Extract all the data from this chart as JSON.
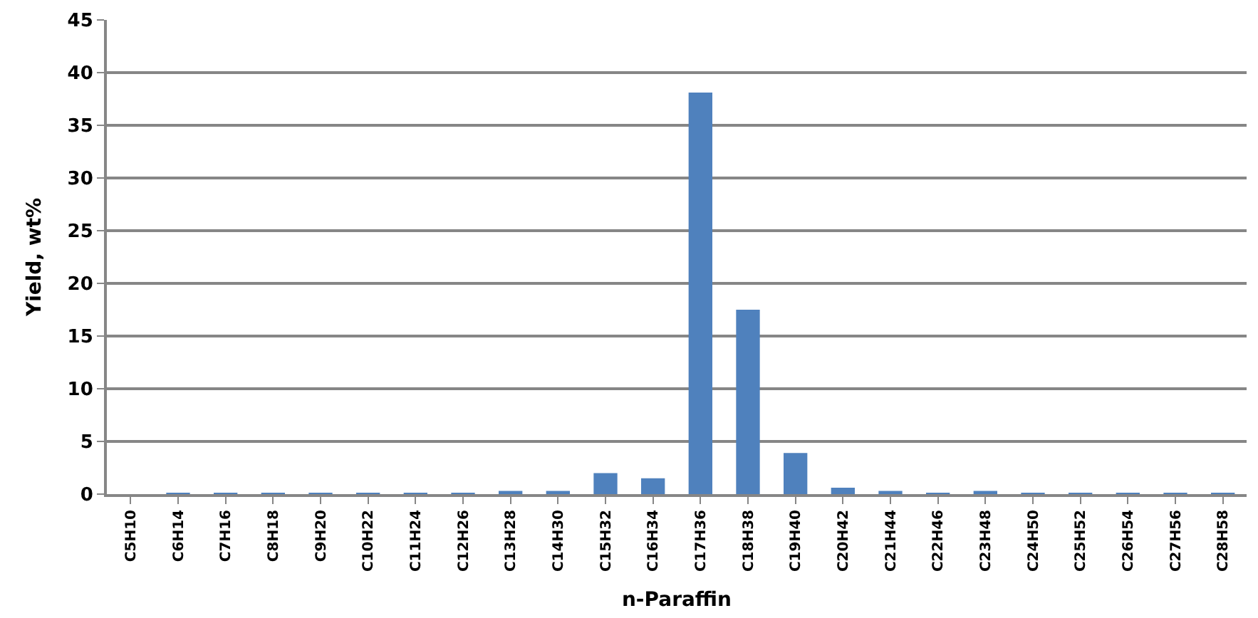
{
  "chart_data": {
    "type": "bar",
    "xlabel": "n-Paraffin",
    "ylabel": "Yield, wt%",
    "categories": [
      "C5H10",
      "C6H14",
      "C7H16",
      "C8H18",
      "C9H20",
      "C10H22",
      "C11H24",
      "C12H26",
      "C13H28",
      "C14H30",
      "C15H32",
      "C16H34",
      "C17H36",
      "C18H38",
      "C19H40",
      "C20H42",
      "C21H44",
      "C22H46",
      "C23H48",
      "C24H50",
      "C25H52",
      "C26H54",
      "C27H56",
      "C28H58"
    ],
    "series": [
      {
        "color": "#4f81bd",
        "values": [
          0,
          0.1,
          0.1,
          0.1,
          0.1,
          0.1,
          0.1,
          0.1,
          0.3,
          0.3,
          2.0,
          1.5,
          38.1,
          17.5,
          3.9,
          0.6,
          0.3,
          0.1,
          0.3,
          0.1,
          0.1,
          0.1,
          0.1,
          0.1
        ]
      }
    ],
    "ylim": [
      0,
      45
    ],
    "yticks": [
      0,
      5,
      10,
      15,
      20,
      25,
      30,
      35,
      40,
      45
    ],
    "grid": "y"
  }
}
